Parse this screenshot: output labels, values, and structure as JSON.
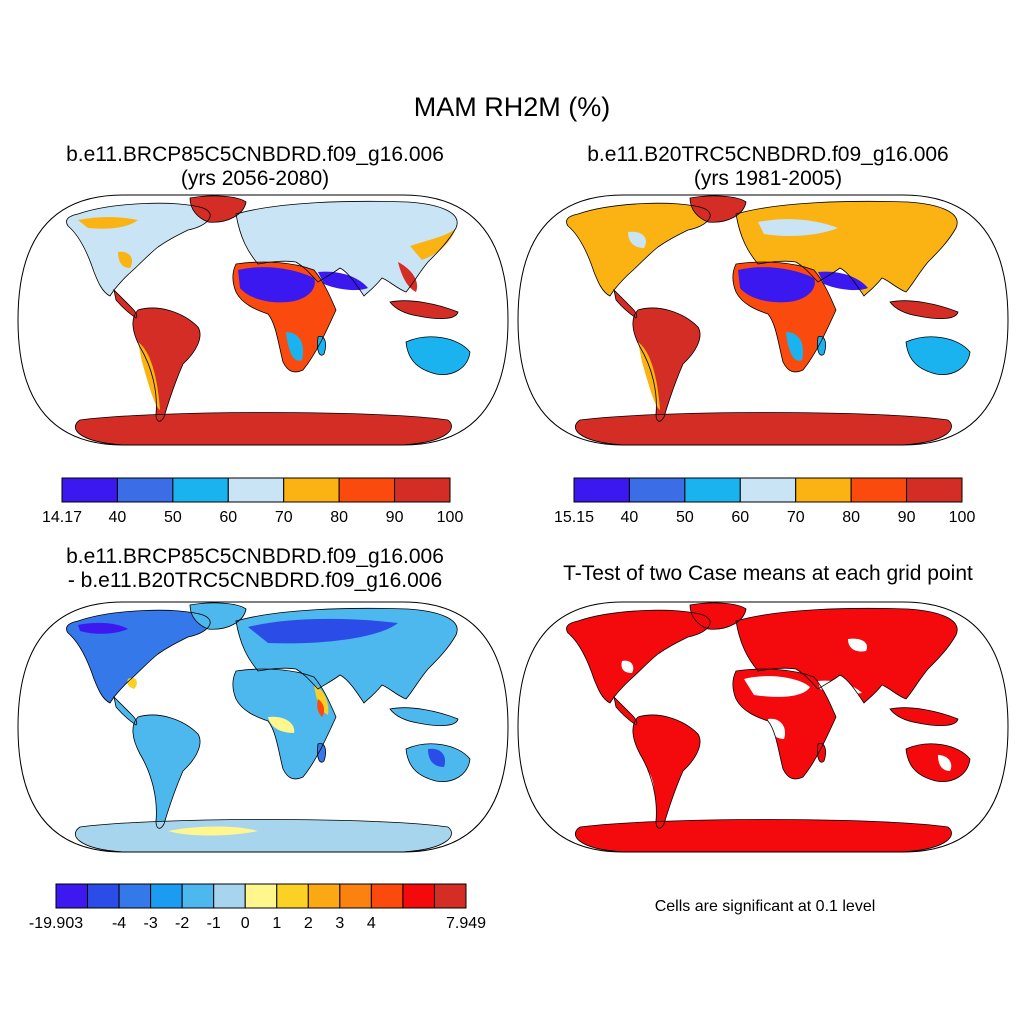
{
  "figure": {
    "main_title": "MAM RH2M (%)",
    "significance_note": "Cells are significant at 0.1 level"
  },
  "panels": [
    {
      "id": "case",
      "title_line1": "b.e11.BRCP85C5CNBDRD.f09_g16.006",
      "title_line2": "(yrs 2056-2080)",
      "colorbar": {
        "colors": [
          "#3b18f0",
          "#3b6ee6",
          "#1ab3ef",
          "#c8e4f5",
          "#fbb313",
          "#fb4a0d",
          "#d42d26"
        ],
        "labels": [
          "14.17",
          "40",
          "50",
          "60",
          "70",
          "80",
          "90",
          "100"
        ]
      }
    },
    {
      "id": "control",
      "title_line1": "b.e11.B20TRC5CNBDRD.f09_g16.006",
      "title_line2": "(yrs 1981-2005)",
      "colorbar": {
        "colors": [
          "#3b18f0",
          "#3b6ee6",
          "#1ab3ef",
          "#c8e4f5",
          "#fbb313",
          "#fb4a0d",
          "#d42d26"
        ],
        "labels": [
          "15.15",
          "40",
          "50",
          "60",
          "70",
          "80",
          "90",
          "100"
        ]
      }
    },
    {
      "id": "difference",
      "title_line1": "b.e11.BRCP85C5CNBDRD.f09_g16.006",
      "title_line2": "- b.e11.B20TRC5CNBDRD.f09_g16.006",
      "colorbar": {
        "colors": [
          "#3d18ef",
          "#2c4ce8",
          "#3478e9",
          "#1b9cf0",
          "#4db8ee",
          "#a7d5ee",
          "#fff78e",
          "#fcd024",
          "#fca814",
          "#fb8110",
          "#fb4a0d",
          "#f40a0c",
          "#d42d26"
        ],
        "labels": [
          "-19.903",
          "-4",
          "-3",
          "-2",
          "-1",
          "0",
          "1",
          "2",
          "3",
          "4",
          "7.949"
        ],
        "label_boundaries": [
          0,
          2,
          3,
          4,
          5,
          6,
          7,
          8,
          9,
          10,
          13
        ]
      }
    },
    {
      "id": "ttest",
      "title_line1": "T-Test of two Case means at each grid point",
      "title_line2": ""
    }
  ],
  "map_colors": {
    "ocean": "#ffffff",
    "outline": "#000000",
    "significant": "#f40a0c"
  }
}
